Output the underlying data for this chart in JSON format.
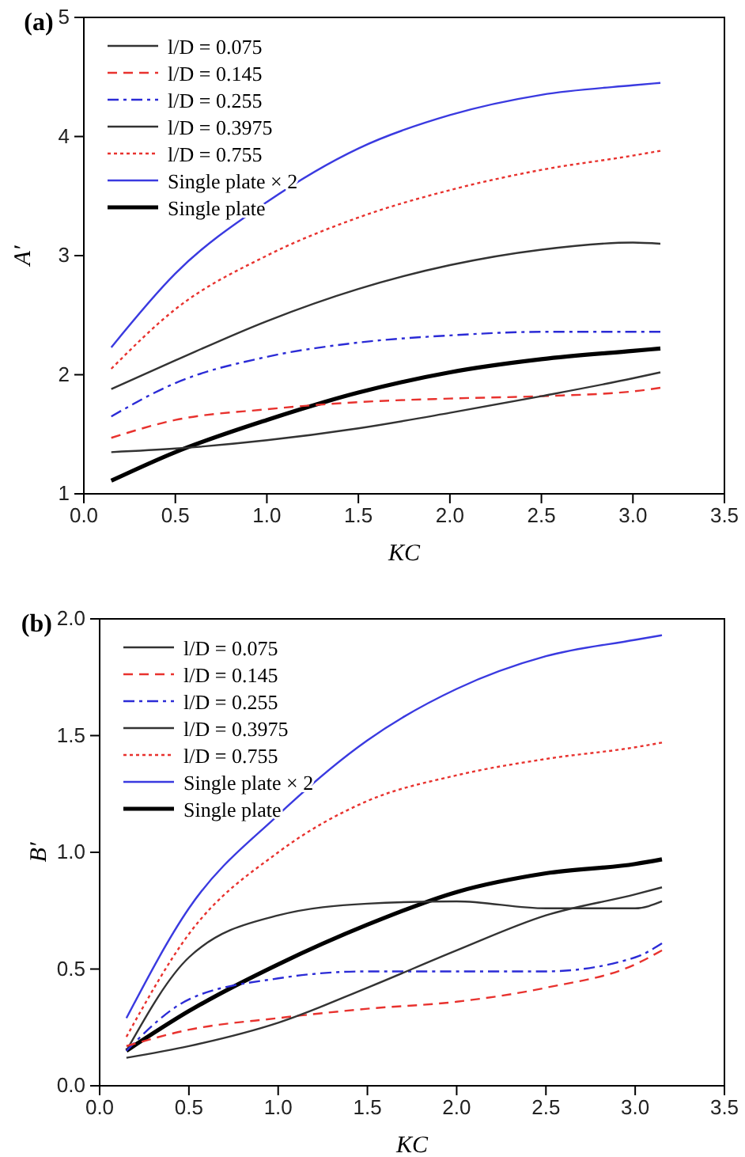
{
  "chart_data": [
    {
      "type": "line",
      "title": "(a)",
      "xlabel": "KC",
      "ylabel": "A′",
      "xlim": [
        0,
        3.5
      ],
      "ylim": [
        1,
        5
      ],
      "xticks": [
        {
          "value": 0,
          "label": "0.0"
        },
        {
          "value": 0.5,
          "label": "0.5"
        },
        {
          "value": 1,
          "label": "1.0"
        },
        {
          "value": 1.5,
          "label": "1.5"
        },
        {
          "value": 2,
          "label": "2.0"
        },
        {
          "value": 2.5,
          "label": "2.5"
        },
        {
          "value": 3,
          "label": "3.0"
        },
        {
          "value": 3.5,
          "label": "3.5"
        }
      ],
      "yticks": [
        1,
        2,
        3,
        4,
        5
      ],
      "grid": false,
      "legend": "top left",
      "marker": "none",
      "x": [
        0.15,
        0.5,
        1.0,
        1.5,
        2.0,
        2.5,
        3.0,
        3.15
      ],
      "series": [
        {
          "name": "l/D = 0.075",
          "color": "#333333",
          "line_style": "solid",
          "values": [
            1.35,
            1.38,
            1.45,
            1.55,
            1.68,
            1.82,
            1.97,
            2.02
          ]
        },
        {
          "name": "l/D = 0.145",
          "color": "#e8322e",
          "line_style": "dashed",
          "values": [
            1.47,
            1.62,
            1.71,
            1.77,
            1.8,
            1.82,
            1.86,
            1.89
          ]
        },
        {
          "name": "l/D = 0.255",
          "color": "#2b2bd6",
          "line_style": "dashdot",
          "values": [
            1.65,
            1.93,
            2.15,
            2.27,
            2.33,
            2.36,
            2.36,
            2.36
          ]
        },
        {
          "name": "l/D = 0.3975",
          "color": "#333333",
          "line_style": "solid",
          "values": [
            1.88,
            2.12,
            2.45,
            2.72,
            2.92,
            3.05,
            3.11,
            3.1
          ]
        },
        {
          "name": "l/D = 0.755",
          "color": "#e8322e",
          "line_style": "dotted",
          "values": [
            2.05,
            2.55,
            3.0,
            3.32,
            3.55,
            3.72,
            3.84,
            3.88
          ]
        },
        {
          "name": "Single plate × 2",
          "color": "#3a3ae0",
          "line_style": "solid",
          "values": [
            2.23,
            2.85,
            3.45,
            3.9,
            4.18,
            4.35,
            4.43,
            4.45
          ]
        },
        {
          "name": "Single plate",
          "color": "#000000",
          "line_style": "solid",
          "values": [
            1.11,
            1.35,
            1.62,
            1.85,
            2.02,
            2.13,
            2.2,
            2.22
          ]
        }
      ]
    },
    {
      "type": "line",
      "title": "(b)",
      "xlabel": "KC",
      "ylabel": "B′",
      "xlim": [
        0,
        3.5
      ],
      "ylim": [
        0,
        2
      ],
      "xticks": [
        {
          "value": 0,
          "label": "0.0"
        },
        {
          "value": 0.5,
          "label": "0.5"
        },
        {
          "value": 1,
          "label": "1.0"
        },
        {
          "value": 1.5,
          "label": "1.5"
        },
        {
          "value": 2,
          "label": "2.0"
        },
        {
          "value": 2.5,
          "label": "2.5"
        },
        {
          "value": 3,
          "label": "3.0"
        },
        {
          "value": 3.5,
          "label": "3.5"
        }
      ],
      "yticks": [
        {
          "value": 0,
          "label": "0.0"
        },
        {
          "value": 0.5,
          "label": "0.5"
        },
        {
          "value": 1,
          "label": "1.0"
        },
        {
          "value": 1.5,
          "label": "1.5"
        },
        {
          "value": 2,
          "label": "2.0"
        }
      ],
      "grid": false,
      "legend": "top left",
      "marker": "none",
      "x": [
        0.15,
        0.5,
        1.0,
        1.5,
        2.0,
        2.5,
        3.0,
        3.15
      ],
      "series": [
        {
          "name": "l/D = 0.075",
          "color": "#333333",
          "line_style": "solid",
          "values": [
            0.12,
            0.17,
            0.27,
            0.42,
            0.58,
            0.73,
            0.82,
            0.85
          ]
        },
        {
          "name": "l/D = 0.145",
          "color": "#e8322e",
          "line_style": "dashed",
          "values": [
            0.17,
            0.24,
            0.29,
            0.33,
            0.36,
            0.42,
            0.52,
            0.58
          ]
        },
        {
          "name": "l/D = 0.255",
          "color": "#2b2bd6",
          "line_style": "dashdot",
          "values": [
            0.15,
            0.37,
            0.46,
            0.49,
            0.49,
            0.49,
            0.55,
            0.61
          ]
        },
        {
          "name": "l/D = 0.3975",
          "color": "#333333",
          "line_style": "solid",
          "values": [
            0.15,
            0.55,
            0.73,
            0.78,
            0.79,
            0.76,
            0.76,
            0.79
          ]
        },
        {
          "name": "l/D = 0.755",
          "color": "#e8322e",
          "line_style": "dotted",
          "values": [
            0.21,
            0.65,
            1.0,
            1.22,
            1.33,
            1.4,
            1.45,
            1.47
          ]
        },
        {
          "name": "Single plate × 2",
          "color": "#3a3ae0",
          "line_style": "solid",
          "values": [
            0.29,
            0.76,
            1.16,
            1.48,
            1.7,
            1.84,
            1.91,
            1.93
          ]
        },
        {
          "name": "Single plate",
          "color": "#000000",
          "line_style": "solid",
          "values": [
            0.15,
            0.32,
            0.52,
            0.69,
            0.83,
            0.91,
            0.95,
            0.97
          ]
        }
      ]
    }
  ]
}
